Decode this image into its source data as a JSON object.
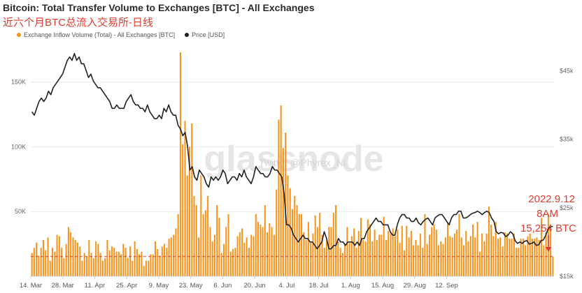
{
  "title": "Bitcoin: Total Transfer Volume to Exchanges [BTC] - All Exchanges",
  "subtitle": "近六个月BTC总流入交易所-日线",
  "legend": {
    "series_inflow": "Exchange Inflow Volume (Total) - All Exchanges [BTC]",
    "series_price": "Price [USD]"
  },
  "watermark": {
    "logo": "glassnode",
    "handle": "Twitter @Phyrex_Ni"
  },
  "annotation": {
    "line1": "2022.9.12",
    "line2": "8AM",
    "line3": "15,254 BTC"
  },
  "colors": {
    "bars": "#f7931a",
    "price_line": "#222222",
    "annotation": "#e03a2f"
  },
  "chart_data": {
    "type": "bar",
    "x_tick_labels": [
      "14. Mar",
      "28. Mar",
      "11. Apr",
      "25. Apr",
      "9. May",
      "23. May",
      "6. Jun",
      "20. Jun",
      "4. Jul",
      "18. Jul",
      "1. Aug",
      "15. Aug",
      "29. Aug",
      "12. Sep"
    ],
    "left_axis": {
      "ticks": [
        "50K",
        "100K",
        "150K"
      ],
      "range": [
        0,
        180000
      ]
    },
    "right_axis": {
      "ticks": [
        "$15k",
        "$25k",
        "$35k",
        "$45k"
      ],
      "range": [
        15000,
        49000
      ]
    },
    "inflow_series": {
      "name": "Exchange Inflow Volume (Total) - All Exchanges [BTC]",
      "start_date": "2022-03-14",
      "values": [
        18000,
        22000,
        26000,
        16000,
        22000,
        28000,
        20000,
        30000,
        12000,
        22000,
        19000,
        32000,
        31000,
        22000,
        14000,
        25000,
        38000,
        34000,
        30000,
        28000,
        26000,
        23000,
        12000,
        18000,
        15000,
        28000,
        18000,
        14000,
        27000,
        25000,
        18000,
        12000,
        14000,
        28000,
        20000,
        23000,
        22000,
        19000,
        19000,
        17000,
        25000,
        22000,
        14000,
        23000,
        12000,
        27000,
        21000,
        17000,
        19000,
        8000,
        12000,
        12000,
        17000,
        17000,
        27000,
        21000,
        16000,
        23000,
        25000,
        22000,
        29000,
        30000,
        32000,
        37000,
        48000,
        173000,
        102000,
        120000,
        78000,
        100000,
        118000,
        62000,
        55000,
        30000,
        78000,
        48000,
        51000,
        62000,
        38000,
        27000,
        32000,
        55000,
        45000,
        18000,
        25000,
        38000,
        48000,
        19000,
        21000,
        22000,
        31000,
        34000,
        37000,
        26000,
        30000,
        22000,
        32000,
        31000,
        48000,
        42000,
        40000,
        38000,
        55000,
        34000,
        41000,
        38000,
        32000,
        67000,
        121000,
        132000,
        99000,
        111000,
        78000,
        68000,
        52000,
        62000,
        55000,
        48000,
        48000,
        34000,
        28000,
        42000,
        26000,
        33000,
        47000,
        38000,
        49000,
        32000,
        22000,
        28000,
        38000,
        38000,
        49000,
        55000,
        27000,
        22000,
        18000,
        25000,
        38000,
        26000,
        31000,
        37000,
        22000,
        35000,
        45000,
        28000,
        27000,
        44000,
        40000,
        27000,
        36000,
        28000,
        32000,
        32000,
        46000,
        28000,
        35000,
        33000,
        37000,
        31000,
        36000,
        26000,
        39000,
        20000,
        39000,
        30000,
        35000,
        24000,
        28000,
        24000,
        33000,
        22000,
        48000,
        25000,
        32000,
        38000,
        40000,
        36000,
        24000,
        27000,
        25000,
        30000,
        42000,
        31000,
        30000,
        33000,
        36000,
        48000,
        30000,
        24000,
        35000,
        27000,
        31000,
        40000,
        30000,
        42000,
        19000,
        33000,
        27000,
        33000,
        54000,
        40000,
        31000,
        42000,
        29000,
        30000,
        23000,
        34000,
        33000,
        29000,
        29000,
        33000,
        22000,
        22000,
        29000,
        29000,
        24000,
        31000,
        33000,
        29000,
        29000,
        30000,
        28000,
        45000,
        24000,
        34000,
        48000,
        37000,
        15254
      ]
    },
    "price_series": {
      "name": "Price [USD]",
      "unit": "USD",
      "values": [
        39000,
        38500,
        39500,
        40500,
        41000,
        40500,
        41000,
        42000,
        41500,
        42500,
        43000,
        43500,
        44000,
        44500,
        45500,
        46500,
        47000,
        46500,
        47500,
        46500,
        47000,
        46000,
        46000,
        45000,
        44000,
        44500,
        43500,
        43000,
        42500,
        42500,
        42000,
        41500,
        41000,
        40500,
        39500,
        39500,
        40000,
        39500,
        39500,
        39500,
        40500,
        41000,
        41500,
        40500,
        40000,
        40000,
        39500,
        39500,
        39000,
        40000,
        39000,
        38500,
        38000,
        38000,
        38500,
        38000,
        39500,
        39000,
        40000,
        39000,
        38500,
        38500,
        37000,
        36500,
        35500,
        36000,
        34000,
        30500,
        31000,
        29500,
        29000,
        30500,
        30000,
        29500,
        28500,
        28000,
        29500,
        29000,
        29500,
        29000,
        29500,
        30500,
        30000,
        28500,
        29000,
        29500,
        29500,
        29000,
        30000,
        29500,
        30500,
        29500,
        29000,
        28500,
        29500,
        31000,
        30500,
        30000,
        30000,
        29500,
        29500,
        30000,
        31000,
        30500,
        30500,
        30000,
        29500,
        27000,
        22500,
        22500,
        22000,
        21000,
        20500,
        20000,
        20500,
        21000,
        20500,
        20500,
        20000,
        20000,
        19500,
        19000,
        19500,
        20000,
        21500,
        20500,
        19000,
        19000,
        19500,
        19500,
        20500,
        20000,
        20000,
        19500,
        20000,
        20000,
        20000,
        19500,
        20000,
        19500,
        20500,
        20500,
        21500,
        22000,
        22500,
        23000,
        23500,
        23000,
        23000,
        22500,
        22500,
        22500,
        21500,
        21000,
        21000,
        22500,
        23500,
        24000,
        24000,
        23500,
        23500,
        23000,
        23000,
        23500,
        22800,
        22500,
        23000,
        23300,
        23500,
        23000,
        22500,
        23500,
        23800,
        24000,
        24000,
        23500,
        23000,
        22500,
        23500,
        24000,
        24000,
        24500,
        24500,
        23500,
        23500,
        23700,
        24000,
        24200,
        24300,
        24500,
        24300,
        24000,
        24300,
        24500,
        24300,
        23500,
        23000,
        21500,
        21200,
        21400,
        21300,
        20800,
        21000,
        21500,
        21200,
        20200,
        19800,
        20000,
        19800,
        20100,
        20200,
        19700,
        19800,
        20000,
        19500,
        19600,
        20200,
        20300,
        21000,
        21900,
        22200,
        22300
      ],
      "range": [
        15000,
        49000
      ]
    },
    "reference_line": {
      "value": 15254,
      "style": "dashed",
      "color": "#e03a2f"
    }
  }
}
